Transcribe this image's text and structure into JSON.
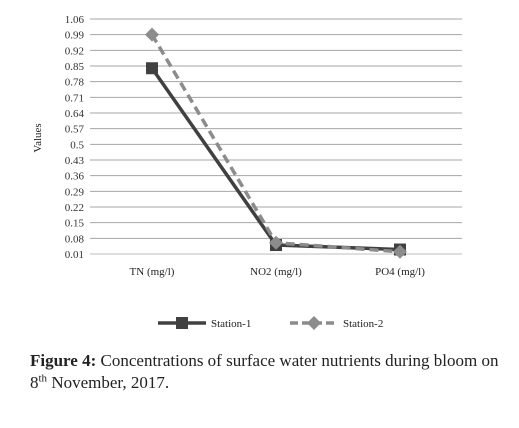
{
  "chart_data": {
    "type": "line",
    "title": "",
    "xlabel": "",
    "ylabel": "Values",
    "categories": [
      "TN (mg/l)",
      "NO2 (mg/l)",
      "PO4 (mg/l)"
    ],
    "y_ticks": [
      "1.06",
      "0.99",
      "0.92",
      "0.85",
      "0.78",
      "0.71",
      "0.64",
      "0.57",
      "0.5",
      "0.43",
      "0.36",
      "0.29",
      "0.22",
      "0.15",
      "0.08",
      "0.01"
    ],
    "ylim": [
      0.01,
      1.06
    ],
    "grid": true,
    "legend_position": "bottom",
    "series": [
      {
        "name": "Station-1",
        "values": [
          0.84,
          0.05,
          0.03
        ],
        "color": "#404040",
        "line_style": "solid",
        "marker": "square"
      },
      {
        "name": "Station-2",
        "values": [
          0.99,
          0.06,
          0.02
        ],
        "color": "#8c8c8c",
        "line_style": "dashed",
        "marker": "diamond"
      }
    ]
  },
  "caption": {
    "label": "Figure 4:",
    "text_before": " Concentrations of  surface water nutrients during bloom on 8",
    "superscript": "th",
    "text_after": " November, 2017."
  }
}
